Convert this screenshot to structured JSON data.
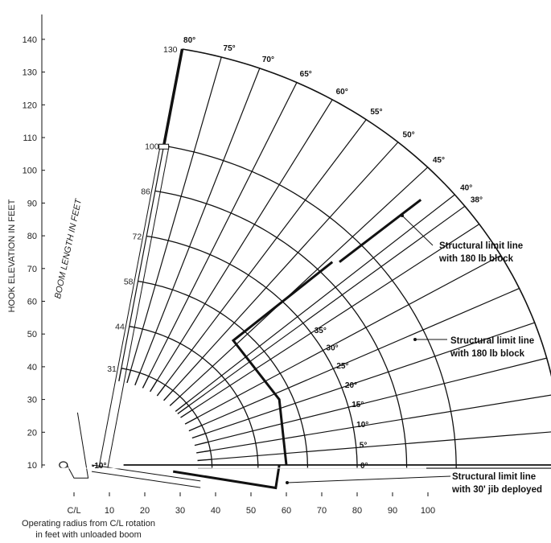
{
  "chart_data": {
    "type": "line",
    "title": "",
    "ylabel": "HOOK ELEVATION IN FEET",
    "xlabel_lines": [
      "Operating radius from C/L rotation",
      "in feet with unloaded boom"
    ],
    "boom_length_label": "BOOM LENGTH IN FEET",
    "xlim": [
      -10,
      100
    ],
    "ylim": [
      10,
      140
    ],
    "y_ticks": [
      "10",
      "20",
      "30",
      "40",
      "50",
      "60",
      "70",
      "80",
      "90",
      "100",
      "110",
      "120",
      "130",
      "140"
    ],
    "x_ticks": [
      "C/L",
      "10",
      "20",
      "30",
      "40",
      "50",
      "60",
      "70",
      "80",
      "90",
      "100"
    ],
    "boom_lengths": [
      {
        "label": "31",
        "value": 31
      },
      {
        "label": "44",
        "value": 44
      },
      {
        "label": "58",
        "value": 58
      },
      {
        "label": "72",
        "value": 72
      },
      {
        "label": "86",
        "value": 86
      },
      {
        "label": "100",
        "value": 100
      },
      {
        "label": "130",
        "value": 130
      }
    ],
    "boom_angles": [
      {
        "label": "80°",
        "value": 80
      },
      {
        "label": "75°",
        "value": 75
      },
      {
        "label": "70°",
        "value": 70
      },
      {
        "label": "65°",
        "value": 65
      },
      {
        "label": "60°",
        "value": 60
      },
      {
        "label": "55°",
        "value": 55
      },
      {
        "label": "50°",
        "value": 50
      },
      {
        "label": "45°",
        "value": 45
      },
      {
        "label": "40°",
        "value": 40
      },
      {
        "label": "38°",
        "value": 38
      },
      {
        "label": "35°",
        "value": 35
      },
      {
        "label": "30°",
        "value": 30
      },
      {
        "label": "25°",
        "value": 25
      },
      {
        "label": "20°",
        "value": 20
      },
      {
        "label": "15°",
        "value": 15
      },
      {
        "label": "10°",
        "value": 10
      },
      {
        "label": "5°",
        "value": 5
      },
      {
        "label": "0°",
        "value": 0
      },
      {
        "label": "-10°",
        "value": -10
      }
    ],
    "limit_lines": [
      {
        "label_lines": [
          "Structural limit line",
          "with 180 lb block"
        ],
        "points": [
          [
            98,
            91
          ],
          [
            75,
            72
          ],
          [
            75,
            72
          ],
          [
            75,
            72
          ]
        ]
      },
      {
        "label_lines": [
          "Structural limit line",
          "with 180 lb block"
        ],
        "points": [
          [
            73,
            72
          ],
          [
            45,
            48
          ],
          [
            58,
            30
          ],
          [
            60,
            10
          ]
        ]
      },
      {
        "label_lines": [
          "Structural limit line",
          "with 30' jib deployed"
        ],
        "points": [
          [
            28,
            8
          ],
          [
            57,
            3
          ],
          [
            58,
            10
          ]
        ]
      }
    ]
  }
}
